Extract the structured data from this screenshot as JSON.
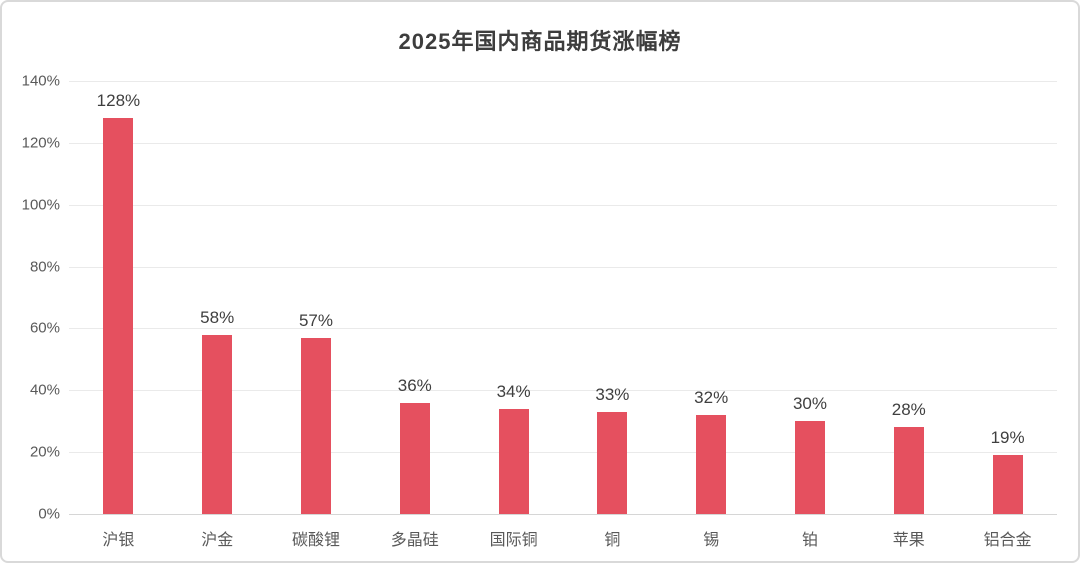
{
  "chart_data": {
    "type": "bar",
    "title": "2025年国内商品期货涨幅榜",
    "categories": [
      "沪银",
      "沪金",
      "碳酸锂",
      "多晶硅",
      "国际铜",
      "铜",
      "锡",
      "铂",
      "苹果",
      "铝合金"
    ],
    "values": [
      128,
      58,
      57,
      36,
      34,
      33,
      32,
      30,
      28,
      19
    ],
    "value_labels": [
      "128%",
      "58%",
      "57%",
      "36%",
      "34%",
      "33%",
      "32%",
      "30%",
      "28%",
      "19%"
    ],
    "xlabel": "",
    "ylabel": "",
    "ylim": [
      0,
      140
    ],
    "ytick_step": 20,
    "ytick_labels": [
      "0%",
      "20%",
      "40%",
      "60%",
      "80%",
      "100%",
      "120%",
      "140%"
    ],
    "grid": true,
    "legend_position": "none",
    "colors": {
      "bar": "#e5505f",
      "gridline": "#eaeaea",
      "baseline": "#d6d6d6",
      "title_text": "#3d3d3d",
      "tick_text": "#595959",
      "value_text": "#3f3f3f",
      "frame_border": "#d9d9d9",
      "background": "#ffffff"
    }
  }
}
